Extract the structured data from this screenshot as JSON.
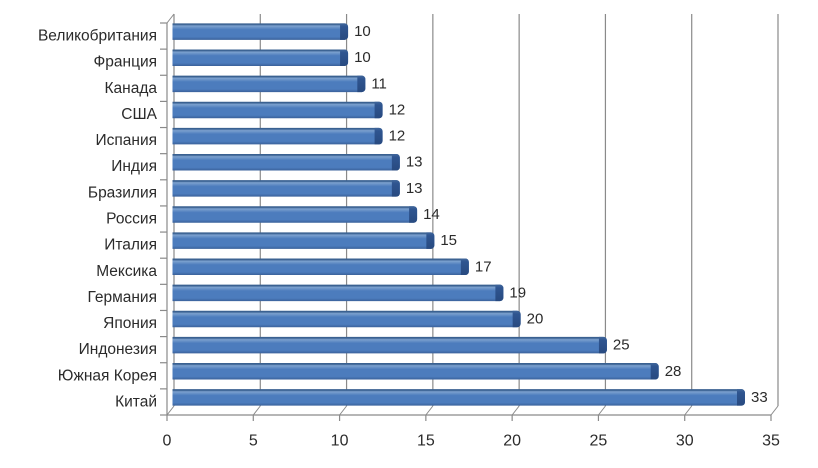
{
  "chart_data": {
    "type": "bar",
    "orientation": "horizontal",
    "style": "3d-horizontal-bar-excel",
    "title": "",
    "xlabel": "",
    "ylabel": "",
    "categories": [
      "Великобритания",
      "Франция",
      "Канада",
      "США",
      "Испания",
      "Индия",
      "Бразилия",
      "Россия",
      "Италия",
      "Мексика",
      "Германия",
      "Япония",
      "Индонезия",
      "Южная Корея",
      "Китай"
    ],
    "values": [
      10,
      10,
      11,
      12,
      12,
      13,
      13,
      14,
      15,
      17,
      19,
      20,
      25,
      28,
      33
    ],
    "data_labels": [
      "10",
      "10",
      "11",
      "12",
      "12",
      "13",
      "13",
      "14",
      "15",
      "17",
      "19",
      "20",
      "25",
      "28",
      "33"
    ],
    "x_ticks": [
      0,
      5,
      10,
      15,
      20,
      25,
      30,
      35
    ],
    "x_tick_labels": [
      "0",
      "5",
      "10",
      "15",
      "20",
      "25",
      "30",
      "35"
    ],
    "xlim": [
      0,
      35
    ],
    "grid": "vertical-gridlines",
    "legend": "none",
    "colors": {
      "background": "#ffffff",
      "bar_fill": "#4C7CBD",
      "bar_highlight": "#7CA1CF",
      "bar_edge_dark": "#3A6191",
      "bar_bottom_dark": "#3A619A",
      "bar_cap_dark": "#2F5590",
      "bar_cap_deep": "#284A80",
      "gridline": "#8A8A8A",
      "axis": "#8A8A8A",
      "text": "#2B2B2B"
    }
  }
}
